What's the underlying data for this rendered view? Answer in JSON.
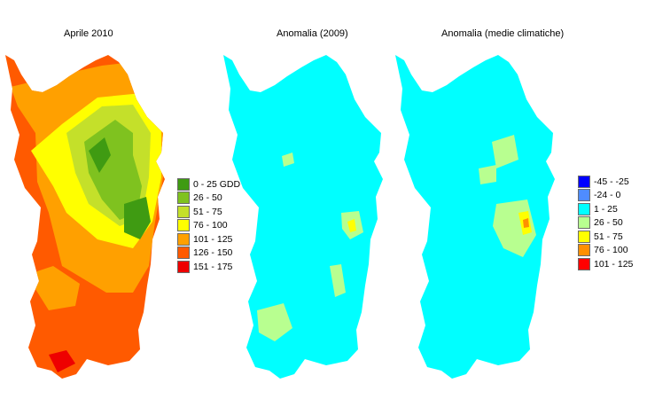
{
  "maps": [
    {
      "title": "Aprile 2010",
      "legend": [
        {
          "label": "0 - 25 GDD",
          "color": "#3f9b12"
        },
        {
          "label": "26 - 50",
          "color": "#7fc21f"
        },
        {
          "label": "51 - 75",
          "color": "#c4e02a"
        },
        {
          "label": "76 - 100",
          "color": "#ffff00"
        },
        {
          "label": "101 - 125",
          "color": "#ffa000"
        },
        {
          "label": "126 - 150",
          "color": "#ff5a00"
        },
        {
          "label": "151 - 175",
          "color": "#ee0000"
        }
      ]
    },
    {
      "title": "Anomalia (2009)",
      "legend": []
    },
    {
      "title": "Anomalia (medie climatiche)",
      "legend": [
        {
          "label": "-45 - -25",
          "color": "#0000ff"
        },
        {
          "label": "-24 - 0",
          "color": "#4f8cff"
        },
        {
          "label": "1 - 25",
          "color": "#00ffff"
        },
        {
          "label": "26 - 50",
          "color": "#b8ff90"
        },
        {
          "label": "51 - 75",
          "color": "#ffff00"
        },
        {
          "label": "76 - 100",
          "color": "#ff9000"
        },
        {
          "label": "101 - 125",
          "color": "#ff0000"
        }
      ]
    }
  ]
}
